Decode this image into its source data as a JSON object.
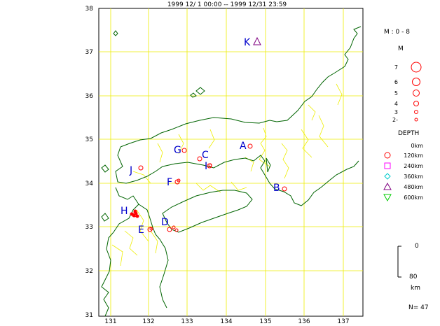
{
  "header": {
    "title": "1999 12/ 1  00:00 -- 1999 12/31 23:59"
  },
  "axes": {
    "lat_ticks": [
      "38",
      "37",
      "36",
      "35",
      "34",
      "33",
      "32",
      "31"
    ],
    "lon_ticks": [
      "131",
      "132",
      "133",
      "134",
      "135",
      "136",
      "137"
    ]
  },
  "stations": [
    {
      "label": "K",
      "marker": "triangle"
    },
    {
      "label": "A",
      "marker": "circle"
    },
    {
      "label": "G",
      "marker": "circle"
    },
    {
      "label": "C",
      "marker": "circle"
    },
    {
      "label": "J",
      "marker": "circle"
    },
    {
      "label": "I",
      "marker": "circle"
    },
    {
      "label": "F",
      "marker": "circle"
    },
    {
      "label": "B",
      "marker": "circle"
    },
    {
      "label": "H",
      "marker": "circle"
    },
    {
      "label": "D",
      "marker": "circle"
    },
    {
      "label": "E",
      "marker": "circle"
    }
  ],
  "legend": {
    "magnitude_title": "M : 0 - 8",
    "magnitude_unit": "M",
    "magnitude_levels": [
      "7",
      "6",
      "5",
      "4",
      "3",
      "2-"
    ],
    "depth_title": "DEPTH",
    "depth_levels": [
      {
        "label": "0km",
        "marker": "none",
        "color": "#000000"
      },
      {
        "label": "120km",
        "marker": "circle",
        "color": "#ff0000"
      },
      {
        "label": "240km",
        "marker": "square",
        "color": "#ff00ff"
      },
      {
        "label": "360km",
        "marker": "diamond",
        "color": "#00cccc"
      },
      {
        "label": "480km",
        "marker": "triangle",
        "color": "#800080"
      },
      {
        "label": "600km",
        "marker": "triangle-down",
        "color": "#00cc00"
      }
    ],
    "scale_top": "0",
    "scale_bottom": "80",
    "scale_unit": "km"
  },
  "count": "N= 47",
  "colors": {
    "coast": "#006400",
    "grid": "#eeee00",
    "border": "#eeee00",
    "event": "#ff0000",
    "label": "#0000cc"
  }
}
